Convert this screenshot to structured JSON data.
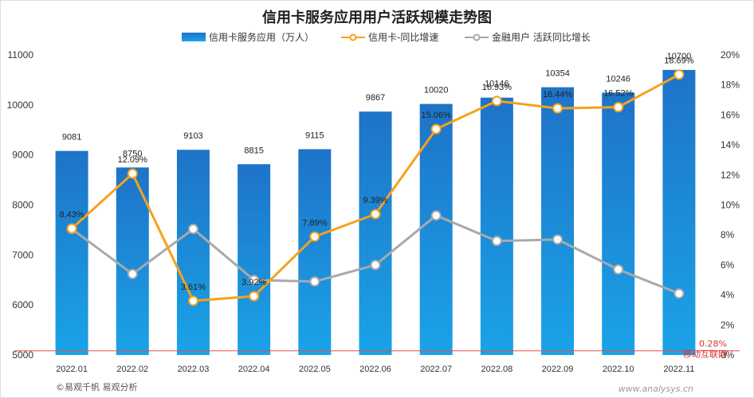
{
  "chart_data": {
    "type": "bar",
    "title": "信用卡服务应用用户活跃规模走势图",
    "categories": [
      "2022.01",
      "2022.02",
      "2022.03",
      "2022.04",
      "2022.05",
      "2022.06",
      "2022.07",
      "2022.08",
      "2022.09",
      "2022.10",
      "2022.11"
    ],
    "series": [
      {
        "name": "信用卡服务应用（万人）",
        "type": "bar",
        "axis": "left",
        "values": [
          9081,
          8750,
          9103,
          8815,
          9115,
          9867,
          10020,
          10146,
          10354,
          10246,
          10700
        ],
        "labels": [
          "9081",
          "8750",
          "9103",
          "8815",
          "9115",
          "9867",
          "10020",
          "10146",
          "10354",
          "10246",
          "10700"
        ]
      },
      {
        "name": "信用卡-同比增速",
        "type": "line",
        "axis": "right",
        "values": [
          8.43,
          12.09,
          3.61,
          3.92,
          7.89,
          9.39,
          15.06,
          16.93,
          16.44,
          16.52,
          18.69
        ],
        "labels": [
          "8.43%",
          "12.09%",
          "3.61%",
          "3.92%",
          "7.89%",
          "9.39%",
          "15.06%",
          "16.93%",
          "16.44%",
          "16.52%",
          "18.69%"
        ]
      },
      {
        "name": "金融用户 活跃同比增长",
        "type": "line",
        "axis": "right",
        "values": [
          8.4,
          5.4,
          8.4,
          5.0,
          4.9,
          6.0,
          9.3,
          7.6,
          7.7,
          5.7,
          4.1
        ]
      }
    ],
    "ylim": [
      5000,
      11000
    ],
    "y2lim": [
      0,
      20
    ],
    "yticks": [
      "5000",
      "6000",
      "7000",
      "8000",
      "9000",
      "10000",
      "11000"
    ],
    "y2ticks": [
      "0%",
      "2%",
      "4%",
      "6%",
      "8%",
      "10%",
      "12%",
      "14%",
      "16%",
      "18%",
      "20%"
    ],
    "annotation": {
      "value_pct": 0.28,
      "label": "0.28%",
      "text": "移动互联网"
    },
    "legend_position": "top",
    "grid": false,
    "colors": {
      "bar_top": "#1e73c8",
      "bar_bottom": "#1aa3e8",
      "line_growth": "#f5a21b",
      "line_finance": "#a9a9a9",
      "ref_line": "#e05050"
    }
  },
  "footer": {
    "source": "©易观千帆 易观分析",
    "watermark": "www.analysys.cn"
  }
}
